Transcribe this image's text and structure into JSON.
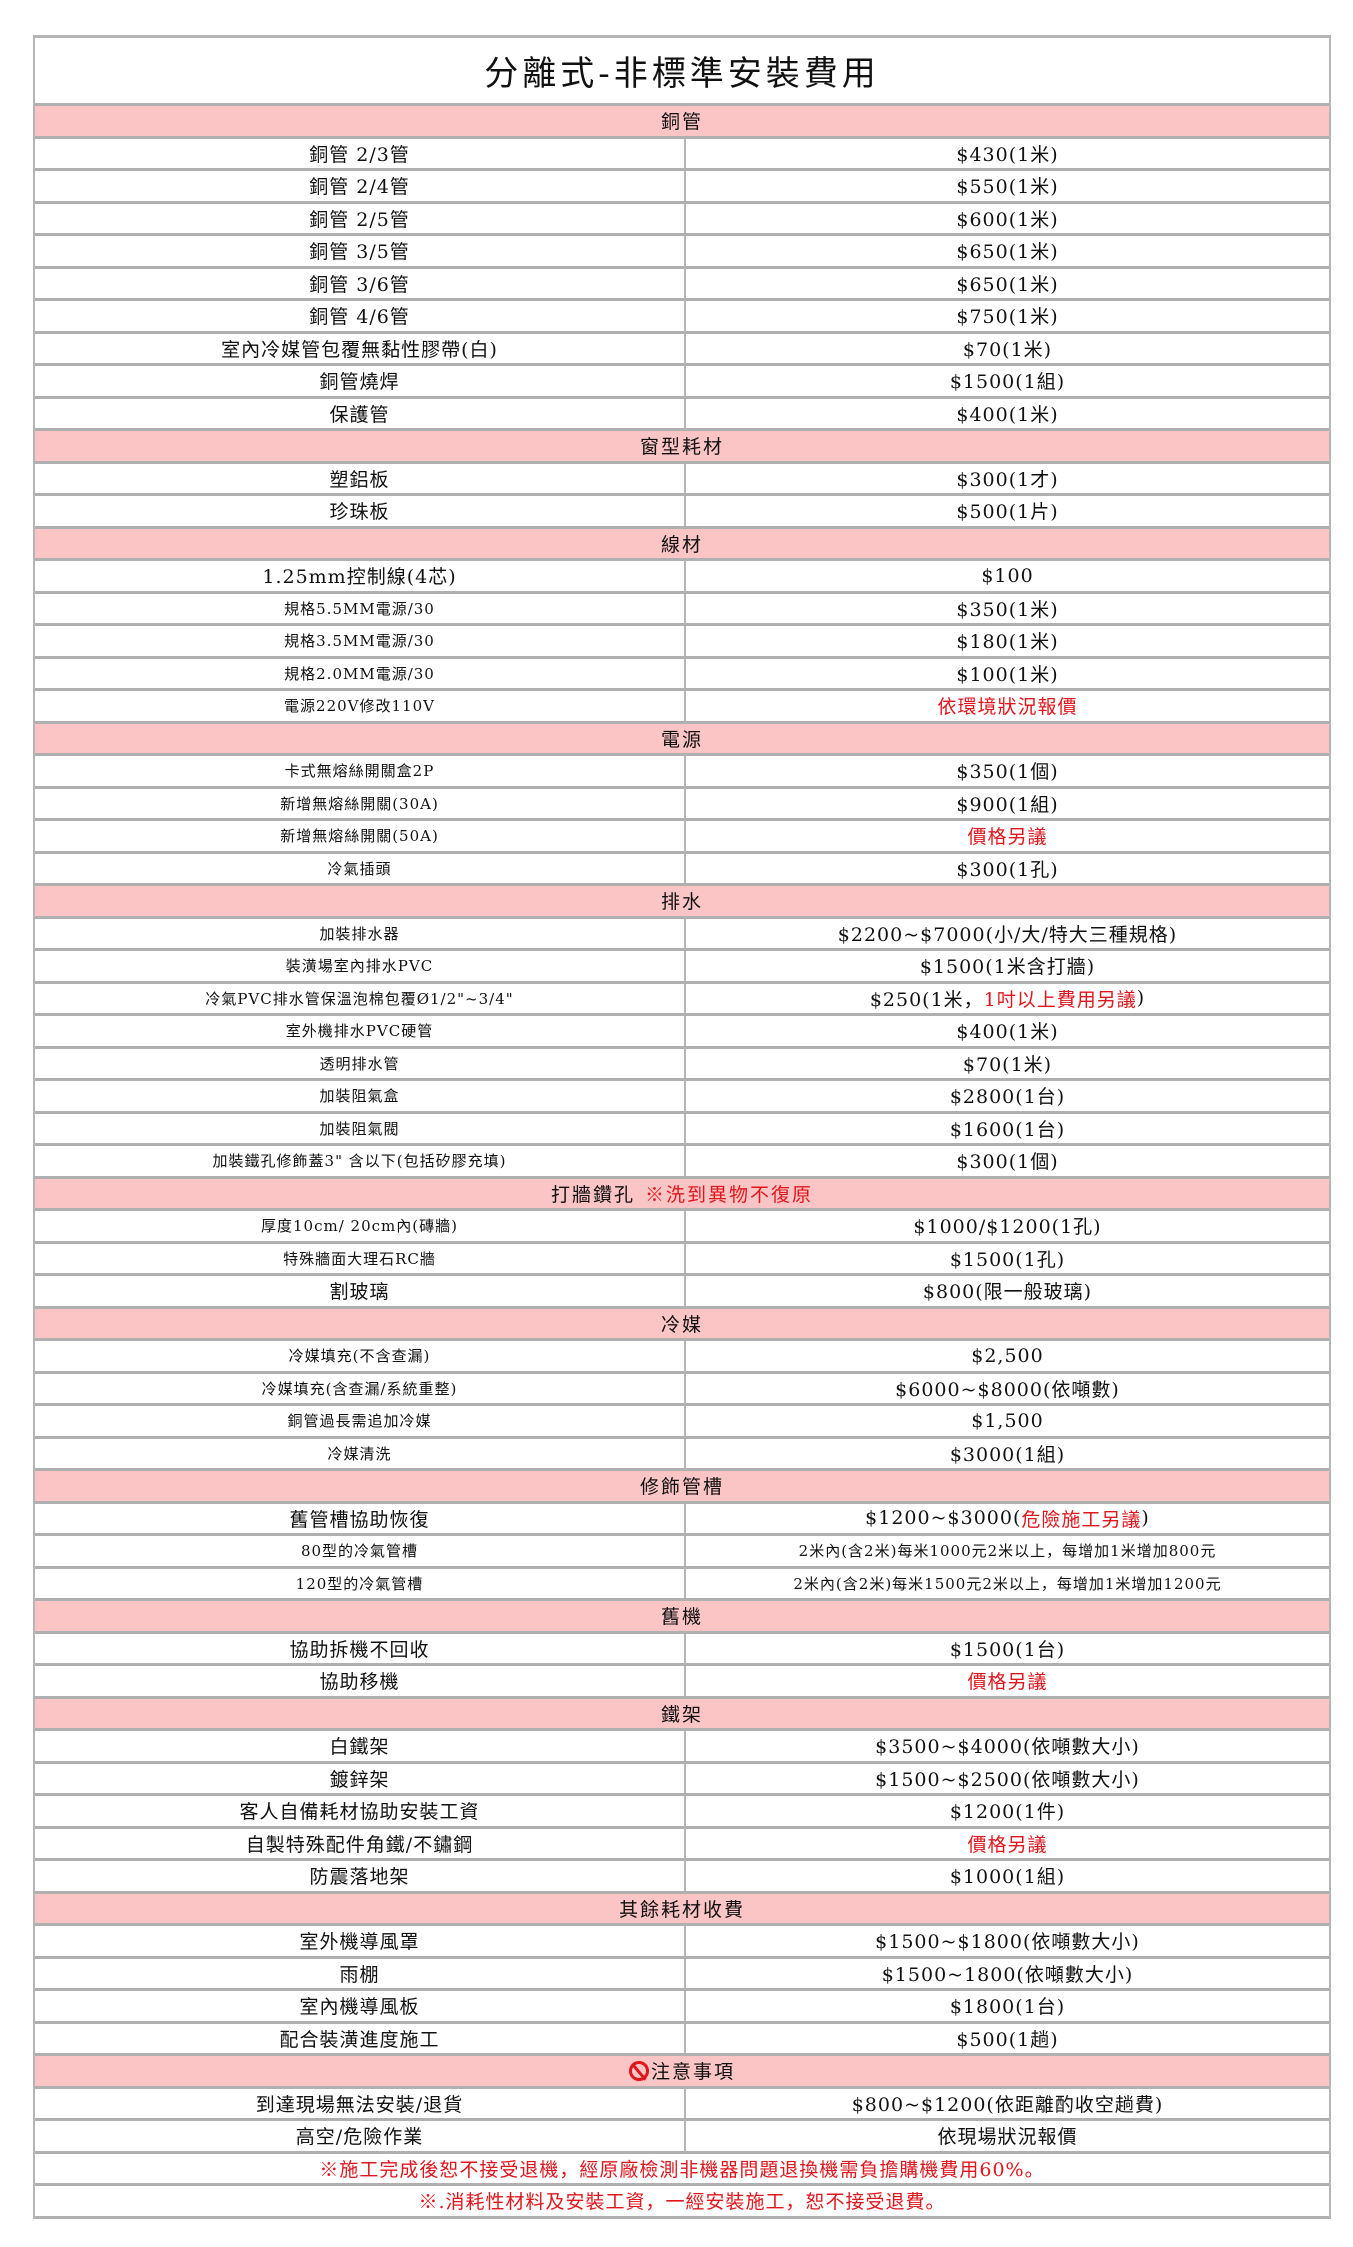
{
  "title": "分離式-非標準安裝費用",
  "accent_color": "#fcc5c5",
  "warning_color": "#e0161d",
  "sections": [
    {
      "title": "銅管",
      "rows": [
        {
          "item": "銅管 2/3管",
          "price": "$430(1米)"
        },
        {
          "item": "銅管 2/4管",
          "price": "$550(1米)"
        },
        {
          "item": "銅管 2/5管",
          "price": "$600(1米)"
        },
        {
          "item": "銅管 3/5管",
          "price": "$650(1米)"
        },
        {
          "item": "銅管 3/6管",
          "price": "$650(1米)"
        },
        {
          "item": "銅管 4/6管",
          "price": "$750(1米)"
        },
        {
          "item": "室內冷媒管包覆無黏性膠帶(白)",
          "price": "$70(1米)"
        },
        {
          "item": "銅管燒焊",
          "price": "$1500(1組)"
        },
        {
          "item": "保護管",
          "price": "$400(1米)"
        }
      ]
    },
    {
      "title": "窗型耗材",
      "rows": [
        {
          "item": "塑鋁板",
          "price": "$300(1才)"
        },
        {
          "item": "珍珠板",
          "price": "$500(1片)"
        }
      ]
    },
    {
      "title": "線材",
      "rows": [
        {
          "item": "1.25mm控制線(4芯)",
          "price": "$100"
        },
        {
          "item": "規格5.5MM電源/30",
          "price": "$350(1米)"
        },
        {
          "item": "規格3.5MM電源/30",
          "price": "$180(1米)"
        },
        {
          "item": "規格2.0MM電源/30",
          "price": "$100(1米)"
        },
        {
          "item": "電源220V修改110V",
          "price_red": "依環境狀況報價"
        }
      ]
    },
    {
      "title": "電源",
      "rows": [
        {
          "item": "卡式無熔絲開關盒2P",
          "price": "$350(1個)"
        },
        {
          "item": "新增無熔絲開關(30A)",
          "price": "$900(1組)"
        },
        {
          "item": "新增無熔絲開關(50A)",
          "price_red": "價格另議"
        },
        {
          "item": "冷氣插頭",
          "price": "$300(1孔)"
        }
      ]
    },
    {
      "title": "排水",
      "rows": [
        {
          "item": "加裝排水器",
          "price": "$2200~$7000(小/大/特大三種規格)"
        },
        {
          "item": "裝潢場室內排水PVC",
          "price": "$1500(1米含打牆)"
        },
        {
          "item": "冷氣PVC排水管保溫泡棉包覆Ø1/2\"~3/4\"",
          "price": "$250(1米，",
          "price_red": "1吋以上費用另議",
          "price_after": ")"
        },
        {
          "item": "室外機排水PVC硬管",
          "price": "$400(1米)"
        },
        {
          "item": "透明排水管",
          "price": "$70(1米)"
        },
        {
          "item": "加裝阻氣盒",
          "price": "$2800(1台)"
        },
        {
          "item": "加裝阻氣閥",
          "price": "$1600(1台)"
        },
        {
          "item": "加裝鐵孔修飾蓋3\" 含以下(包括矽膠充填)",
          "price": "$300(1個)"
        }
      ]
    },
    {
      "title": "打牆鑽孔",
      "title_note": "※洗到異物不復原",
      "rows": [
        {
          "item": "厚度10cm/ 20cm內(磚牆)",
          "price": "$1000/$1200(1孔)"
        },
        {
          "item": "特殊牆面大理石RC牆",
          "price": "$1500(1孔)"
        },
        {
          "item": "割玻璃",
          "price": "$800(限一般玻璃)"
        }
      ]
    },
    {
      "title": "冷媒",
      "rows": [
        {
          "item": "冷媒填充(不含查漏)",
          "price": "$2,500"
        },
        {
          "item": "冷媒填充(含查漏/系統重整)",
          "price": "$6000~$8000(依噸數)"
        },
        {
          "item": "銅管過長需追加冷媒",
          "price": "$1,500"
        },
        {
          "item": "冷媒清洗",
          "price": "$3000(1組)"
        }
      ]
    },
    {
      "title": "修飾管槽",
      "rows": [
        {
          "item": "舊管槽協助恢復",
          "price": "$1200~$3000(",
          "price_red": "危險施工另議",
          "price_after": ")"
        },
        {
          "item": "80型的冷氣管槽",
          "price": "2米內(含2米)每米1000元2米以上，每增加1米增加800元"
        },
        {
          "item": "120型的冷氣管槽",
          "price": "2米內(含2米)每米1500元2米以上，每增加1米增加1200元"
        }
      ]
    },
    {
      "title": "舊機",
      "rows": [
        {
          "item": "協助拆機不回收",
          "price": "$1500(1台)"
        },
        {
          "item": "協助移機",
          "price_red": "價格另議"
        }
      ]
    },
    {
      "title": "鐵架",
      "rows": [
        {
          "item": "白鐵架",
          "price": "$3500~$4000(依噸數大小)"
        },
        {
          "item": "鍍鋅架",
          "price": "$1500~$2500(依噸數大小)"
        },
        {
          "item": "客人自備耗材協助安裝工資",
          "price": "$1200(1件)"
        },
        {
          "item": "自製特殊配件角鐵/不鏽鋼",
          "price_red": "價格另議"
        },
        {
          "item": "防震落地架",
          "price": "$1000(1組)"
        }
      ]
    },
    {
      "title": "其餘耗材收費",
      "rows": [
        {
          "item": "室外機導風罩",
          "price": "$1500~$1800(依噸數大小)"
        },
        {
          "item": "雨棚",
          "price": "$1500~1800(依噸數大小)"
        },
        {
          "item": "室內機導風板",
          "price": "$1800(1台)"
        },
        {
          "item": "配合裝潢進度施工",
          "price": "$500(1趟)"
        }
      ]
    },
    {
      "title": "注意事項",
      "icon": "prohibited-icon",
      "rows": [
        {
          "item": "到達現場無法安裝/退貨",
          "price": "$800~$1200(依距離酌收空趟費)"
        },
        {
          "item": "高空/危險作業",
          "price": "依現場狀況報價"
        }
      ],
      "notes": [
        "※施工完成後恕不接受退機，經原廠檢測非機器問題退換機需負擔購機費用60%。",
        "※.消耗性材料及安裝工資，一經安裝施工，恕不接受退費。"
      ]
    }
  ]
}
